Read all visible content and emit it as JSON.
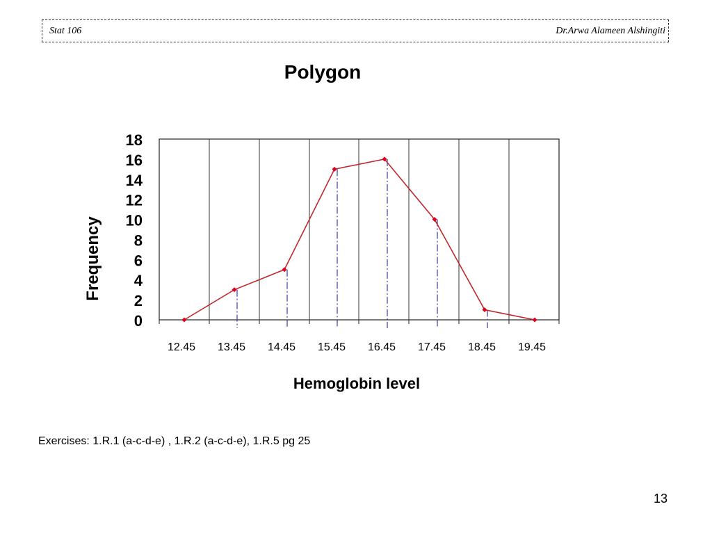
{
  "header": {
    "course": "Stat 106",
    "author": "Dr.Arwa Alameen Alshingiti"
  },
  "slide": {
    "exercises": "Exercises: 1.R.1 (a-c-d-e) , 1.R.2 (a-c-d-e), 1.R.5 pg 25",
    "page_number": "13"
  },
  "chart_data": {
    "type": "line",
    "title": "Polygon",
    "xlabel": "Hemoglobin level",
    "ylabel": "Frequency",
    "categories": [
      "12.45",
      "13.45",
      "14.45",
      "15.45",
      "16.45",
      "17.45",
      "18.45",
      "19.45"
    ],
    "values": [
      0,
      3,
      5,
      15,
      16,
      10,
      1,
      0
    ],
    "yticks": [
      "0",
      "2",
      "4",
      "6",
      "8",
      "10",
      "12",
      "14",
      "16",
      "18"
    ],
    "ylim": [
      0,
      18
    ],
    "grid": "vertical",
    "line_color": "#c0282d",
    "marker_color": "#e0001b",
    "dropline_color": "#3a3a9a"
  }
}
